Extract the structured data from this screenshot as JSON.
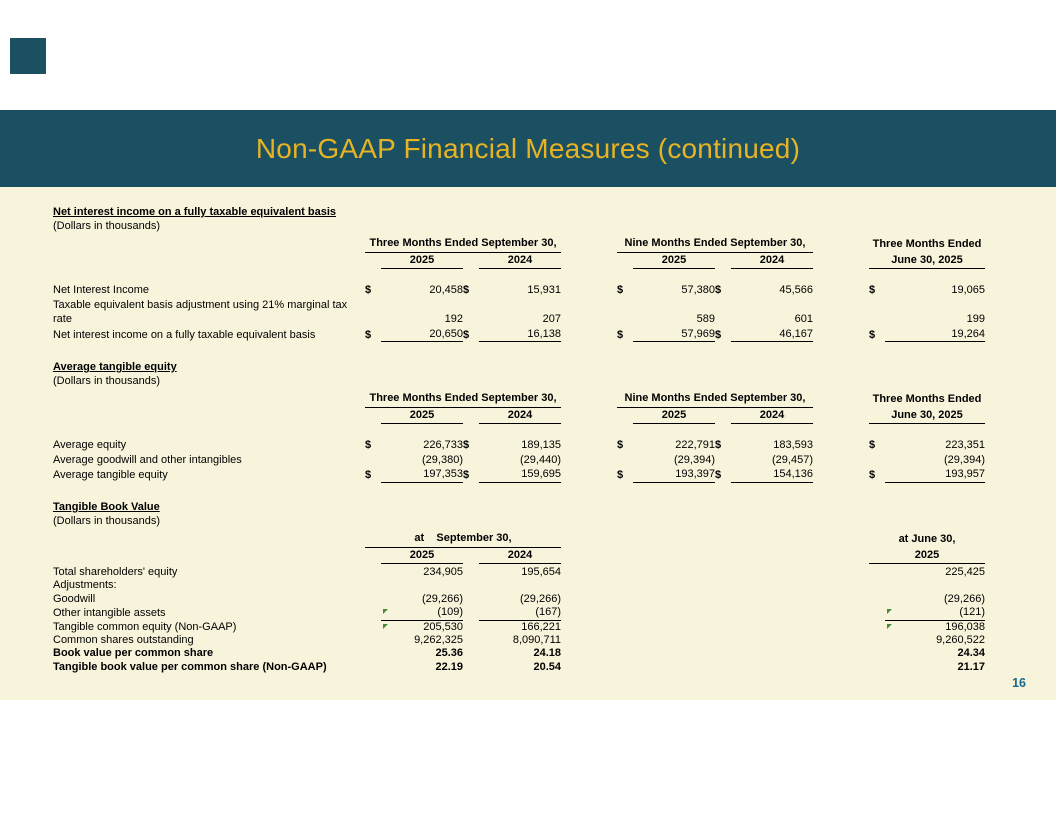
{
  "dollar_sign": "$",
  "slide": {
    "title": "Non-GAAP Financial Measures (continued)",
    "page_number": "16"
  },
  "colors": {
    "band_teal": "#1A5062",
    "title_gold": "#E6B325",
    "content_cream": "#F8F4DC",
    "page_number_teal": "#17698A",
    "flag_green": "#468A3C"
  },
  "tables": [
    {
      "heading": "Net interest income on a fully taxable equivalent basis",
      "subheading": "(Dollars in thousands)",
      "groups": [
        {
          "line1": "Three Months Ended September 30,",
          "years": [
            "2025",
            "2024"
          ]
        },
        {
          "line1": "Nine Months Ended September 30,",
          "years": [
            "2025",
            "2024"
          ]
        },
        {
          "line1": "Three Months Ended",
          "line2": "June 30, 2025"
        }
      ],
      "rows": [
        {
          "label": "Net Interest Income",
          "dollars": true,
          "values": [
            "20,458",
            "15,931",
            "57,380",
            "45,566",
            "19,065"
          ]
        },
        {
          "label": "Taxable equivalent basis adjustment using 21% marginal tax rate",
          "values": [
            "192",
            "207",
            "589",
            "601",
            "199"
          ]
        },
        {
          "label": "Net interest income on a fully taxable equivalent basis",
          "dollars": true,
          "total": true,
          "values": [
            "20,650",
            "16,138",
            "57,969",
            "46,167",
            "19,264"
          ]
        }
      ]
    },
    {
      "heading": "Average tangible equity",
      "subheading": "(Dollars in thousands)",
      "groups": [
        {
          "line1": "Three Months Ended September 30,",
          "years": [
            "2025",
            "2024"
          ]
        },
        {
          "line1": "Nine Months Ended September 30,",
          "years": [
            "2025",
            "2024"
          ]
        },
        {
          "line1": "Three Months Ended",
          "line2": "June 30, 2025"
        }
      ],
      "rows": [
        {
          "label": "Average equity",
          "dollars": true,
          "values": [
            "226,733",
            "189,135",
            "222,791",
            "183,593",
            "223,351"
          ]
        },
        {
          "label": "Average goodwill and other intangibles",
          "values": [
            "(29,380)",
            "(29,440)",
            "(29,394)",
            "(29,457)",
            "(29,394)"
          ]
        },
        {
          "label": "Average tangible equity",
          "dollars": true,
          "total": true,
          "values": [
            "197,353",
            "159,695",
            "193,397",
            "154,136",
            "193,957"
          ]
        }
      ]
    },
    {
      "heading": "Tangible Book Value",
      "subheading": "(Dollars in thousands)",
      "groups": [
        {
          "line1": "at    September 30,",
          "years": [
            "2025",
            "2024"
          ]
        },
        null,
        {
          "line1": "at June 30,",
          "line2": "2025"
        }
      ],
      "rows": [
        {
          "label": "Total shareholders' equity",
          "values": [
            "234,905",
            "195,654",
            "",
            "",
            "225,425"
          ]
        },
        {
          "label": "Adjustments:",
          "values": [
            "",
            "",
            "",
            "",
            ""
          ]
        },
        {
          "label": "Goodwill",
          "values": [
            "(29,266)",
            "(29,266)",
            "",
            "",
            "(29,266)"
          ]
        },
        {
          "label": "Other intangible assets",
          "subtotal_line": true,
          "markers": [
            0,
            4
          ],
          "values": [
            "(109)",
            "(167)",
            "",
            "",
            "(121)"
          ]
        },
        {
          "label": "Tangible common equity (Non-GAAP)",
          "markers": [
            0,
            4
          ],
          "values": [
            "205,530",
            "166,221",
            "",
            "",
            "196,038"
          ]
        },
        {
          "label": "Common shares outstanding",
          "values": [
            "9,262,325",
            "8,090,711",
            "",
            "",
            "9,260,522"
          ]
        },
        {
          "label": "Book value per common share",
          "bold": true,
          "values": [
            "25.36",
            "24.18",
            "",
            "",
            "24.34"
          ]
        },
        {
          "label": "Tangible book value per common share (Non-GAAP)",
          "bold": true,
          "values": [
            "22.19",
            "20.54",
            "",
            "",
            "21.17"
          ]
        }
      ]
    }
  ]
}
